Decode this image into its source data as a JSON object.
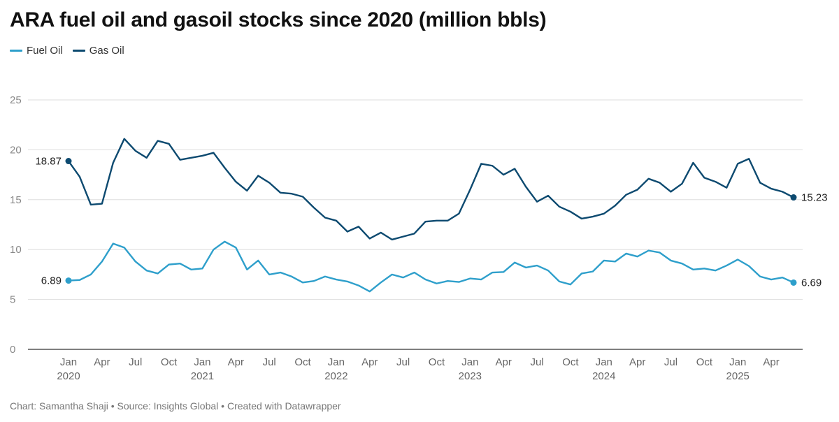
{
  "title": "ARA fuel oil and gasoil stocks since 2020 (million bbls)",
  "footer": "Chart: Samantha Shaji • Source: Insights Global • Created with Datawrapper",
  "chart_data": {
    "type": "line",
    "title": "ARA fuel oil and gasoil stocks since 2020 (million bbls)",
    "xlabel": "",
    "ylabel": "",
    "ylim": [
      0,
      25
    ],
    "yticks": [
      "0",
      "5",
      "10",
      "15",
      "20",
      "25"
    ],
    "grid": true,
    "legend_position": "top-left",
    "x_start": "2020-01",
    "x_ticks": [
      {
        "month": 0,
        "label": "Jan",
        "year": "2020"
      },
      {
        "month": 3,
        "label": "Apr",
        "year": ""
      },
      {
        "month": 6,
        "label": "Jul",
        "year": ""
      },
      {
        "month": 9,
        "label": "Oct",
        "year": ""
      },
      {
        "month": 12,
        "label": "Jan",
        "year": "2021"
      },
      {
        "month": 15,
        "label": "Apr",
        "year": ""
      },
      {
        "month": 18,
        "label": "Jul",
        "year": ""
      },
      {
        "month": 21,
        "label": "Oct",
        "year": ""
      },
      {
        "month": 24,
        "label": "Jan",
        "year": "2022"
      },
      {
        "month": 27,
        "label": "Apr",
        "year": ""
      },
      {
        "month": 30,
        "label": "Jul",
        "year": ""
      },
      {
        "month": 33,
        "label": "Oct",
        "year": ""
      },
      {
        "month": 36,
        "label": "Jan",
        "year": "2023"
      },
      {
        "month": 39,
        "label": "Apr",
        "year": ""
      },
      {
        "month": 42,
        "label": "Jul",
        "year": ""
      },
      {
        "month": 45,
        "label": "Oct",
        "year": ""
      },
      {
        "month": 48,
        "label": "Jan",
        "year": "2024"
      },
      {
        "month": 51,
        "label": "Apr",
        "year": ""
      },
      {
        "month": 54,
        "label": "Jul",
        "year": ""
      },
      {
        "month": 57,
        "label": "Oct",
        "year": ""
      },
      {
        "month": 60,
        "label": "Jan",
        "year": "2025"
      },
      {
        "month": 63,
        "label": "Apr",
        "year": ""
      }
    ],
    "series": [
      {
        "name": "Fuel Oil",
        "color": "#2e9fcb",
        "start_label": "6.89",
        "end_label": "6.69",
        "values": [
          6.89,
          6.95,
          7.5,
          8.8,
          10.6,
          10.2,
          8.8,
          7.9,
          7.6,
          8.5,
          8.6,
          8.0,
          8.1,
          10.0,
          10.8,
          10.2,
          8.0,
          8.9,
          7.5,
          7.7,
          7.3,
          6.7,
          6.85,
          7.3,
          7.0,
          6.8,
          6.4,
          5.8,
          6.7,
          7.5,
          7.2,
          7.7,
          7.0,
          6.6,
          6.85,
          6.75,
          7.1,
          7.0,
          7.7,
          7.75,
          8.7,
          8.2,
          8.4,
          7.9,
          6.8,
          6.5,
          7.6,
          7.8,
          8.9,
          8.8,
          9.6,
          9.3,
          9.9,
          9.7,
          8.9,
          8.6,
          8.0,
          8.1,
          7.9,
          8.4,
          9.0,
          8.35,
          7.3,
          7.0,
          7.2,
          6.69
        ]
      },
      {
        "name": "Gas Oil",
        "color": "#0d4a70",
        "start_label": "18.87",
        "end_label": "15.23",
        "values": [
          18.87,
          17.3,
          14.5,
          14.6,
          18.7,
          21.1,
          19.9,
          19.2,
          20.9,
          20.6,
          19.0,
          19.2,
          19.4,
          19.7,
          18.2,
          16.8,
          15.9,
          17.4,
          16.7,
          15.7,
          15.6,
          15.3,
          14.2,
          13.2,
          12.9,
          11.8,
          12.3,
          11.1,
          11.7,
          11.0,
          11.3,
          11.6,
          12.8,
          12.9,
          12.9,
          13.6,
          16.0,
          18.6,
          18.4,
          17.5,
          18.1,
          16.3,
          14.8,
          15.4,
          14.3,
          13.8,
          13.1,
          13.3,
          13.6,
          14.4,
          15.5,
          16.0,
          17.1,
          16.7,
          15.8,
          16.6,
          18.7,
          17.2,
          16.8,
          16.2,
          18.6,
          19.1,
          16.7,
          16.1,
          15.8,
          15.23
        ]
      }
    ]
  }
}
